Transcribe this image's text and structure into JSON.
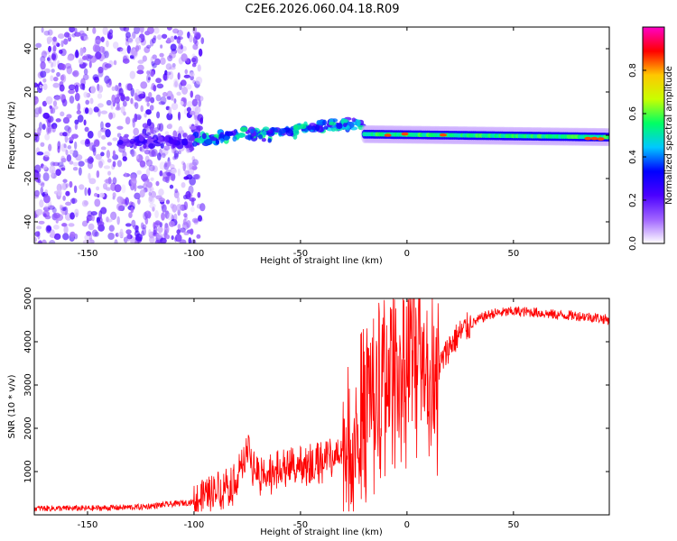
{
  "chart_data": [
    {
      "type": "heatmap",
      "title": "C2E6.2026.060.04.18.R09",
      "xlabel": "Height of straight line (km)",
      "ylabel": "Frequency (Hz)",
      "xlim": [
        -175,
        95
      ],
      "ylim": [
        -50,
        50
      ],
      "xticks": [
        -150,
        -100,
        -50,
        0,
        50
      ],
      "yticks": [
        -40,
        -20,
        0,
        20,
        40
      ],
      "colorbar": {
        "label": "Normalized spectral amplitude",
        "range": [
          0.0,
          1.0
        ],
        "ticks": [
          0.0,
          0.2,
          0.4,
          0.6,
          0.8
        ],
        "stops": [
          "#ffffff",
          "#a064ff",
          "#4b00ff",
          "#0000ff",
          "#00c8ff",
          "#00ff64",
          "#c8ff00",
          "#ffc800",
          "#ff0000",
          "#ff00c8"
        ]
      },
      "features": [
        {
          "x_range": [
            -175,
            -100
          ],
          "frequency_hz": [
            -50,
            50
          ],
          "amplitude": "low, scattered"
        },
        {
          "x_range": [
            -100,
            -20
          ],
          "frequency_hz": [
            -5,
            10
          ],
          "amplitude": "medium, rising"
        },
        {
          "x_range": [
            -20,
            95
          ],
          "frequency_hz": [
            0,
            0
          ],
          "amplitude": "high, narrow band at ~0 Hz"
        }
      ]
    },
    {
      "type": "line",
      "xlabel": "Height of straight line (km)",
      "ylabel": "SNR (10 * v/v)",
      "xlim": [
        -175,
        95
      ],
      "ylim": [
        0,
        5000
      ],
      "xticks": [
        -150,
        -100,
        -50,
        0,
        50
      ],
      "yticks": [
        1000,
        2000,
        3000,
        4000,
        5000
      ],
      "color": "#ff0000",
      "series": [
        {
          "name": "SNR",
          "x": [
            -175,
            -150,
            -125,
            -110,
            -100,
            -90,
            -80,
            -75,
            -70,
            -60,
            -50,
            -40,
            -30,
            -25,
            -20,
            -15,
            -10,
            -5,
            0,
            5,
            10,
            15,
            20,
            25,
            30,
            35,
            40,
            50,
            60,
            70,
            80,
            90,
            95
          ],
          "values": [
            150,
            150,
            180,
            250,
            300,
            600,
            900,
            1500,
            1000,
            1100,
            1200,
            1300,
            1500,
            2000,
            2800,
            3200,
            3400,
            3600,
            3700,
            3900,
            3700,
            3400,
            3900,
            4200,
            4400,
            4550,
            4650,
            4700,
            4680,
            4620,
            4600,
            4550,
            4500
          ]
        }
      ]
    }
  ]
}
